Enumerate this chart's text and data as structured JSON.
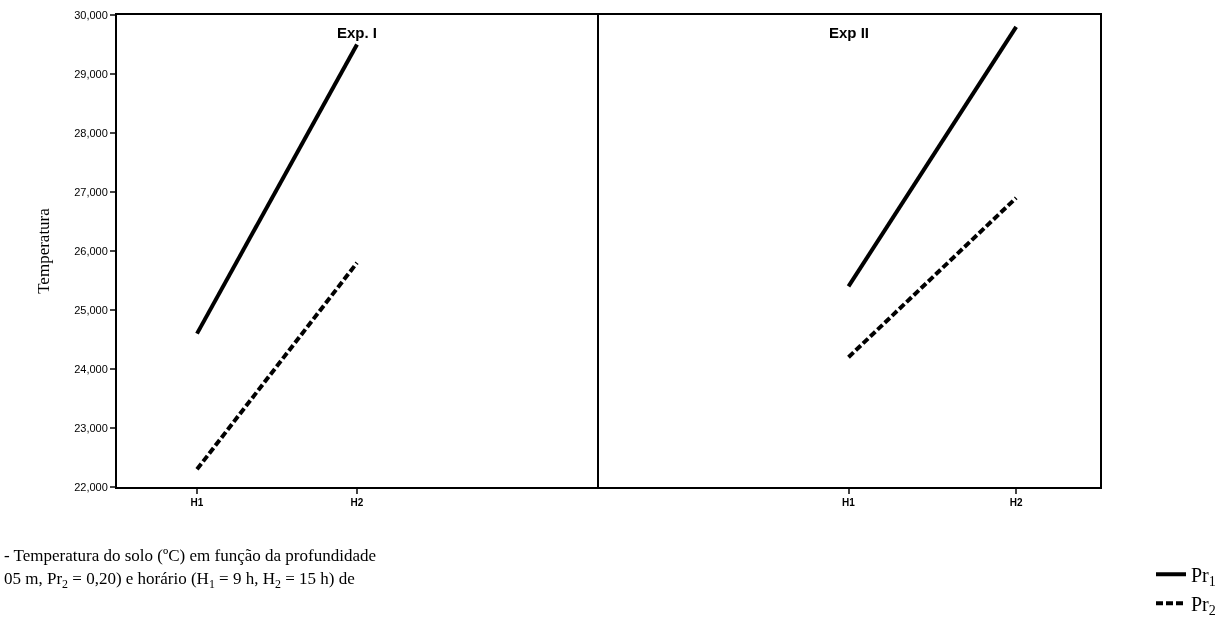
{
  "chart_data": [
    {
      "type": "line",
      "title": "Exp. I",
      "ylabel": "Temperatura",
      "categories": [
        "H1",
        "H2",
        null
      ],
      "ylim": [
        22000,
        30000
      ],
      "yticks": [
        {
          "value": 22000,
          "label": "22,000"
        },
        {
          "value": 23000,
          "label": "23,000"
        },
        {
          "value": 24000,
          "label": "24,000"
        },
        {
          "value": 25000,
          "label": "25,000"
        },
        {
          "value": 26000,
          "label": "26,000"
        },
        {
          "value": 27000,
          "label": "27,000"
        },
        {
          "value": 28000,
          "label": "28,000"
        },
        {
          "value": 29000,
          "label": "29,000"
        },
        {
          "value": 30000,
          "label": "30,000"
        }
      ],
      "series": [
        {
          "name": "Pr$_{1}$",
          "color": "#000000",
          "line_style": "solid",
          "values": [
            24600,
            29500,
            null
          ]
        },
        {
          "name": "Pr$_{2}$",
          "color": "#000000",
          "line_style": "dashed",
          "values": [
            22300,
            25800,
            null
          ]
        }
      ],
      "legend": "bottom right",
      "grid": false,
      "marker": "none",
      "annotations": [
        "- Temperatura do solo (ºC) em função da profundidade",
        "05 m, Pr$_{2}$ = 0,20) e horário (H$_{1}$ = 9 h, H$_{2}$ = 15 h) de"
      ]
    },
    {
      "type": "line",
      "title": "Exp II",
      "categories": [
        null,
        "H1",
        "H2"
      ],
      "ylim": [
        22000,
        30000
      ],
      "tick_labels": "x",
      "series": [
        {
          "color": "#000000",
          "line_style": "solid",
          "values": [
            null,
            25400,
            29800
          ]
        },
        {
          "color": "#000000",
          "line_style": "dashed",
          "values": [
            null,
            24200,
            26900
          ]
        }
      ],
      "grid": false,
      "marker": "none"
    }
  ]
}
